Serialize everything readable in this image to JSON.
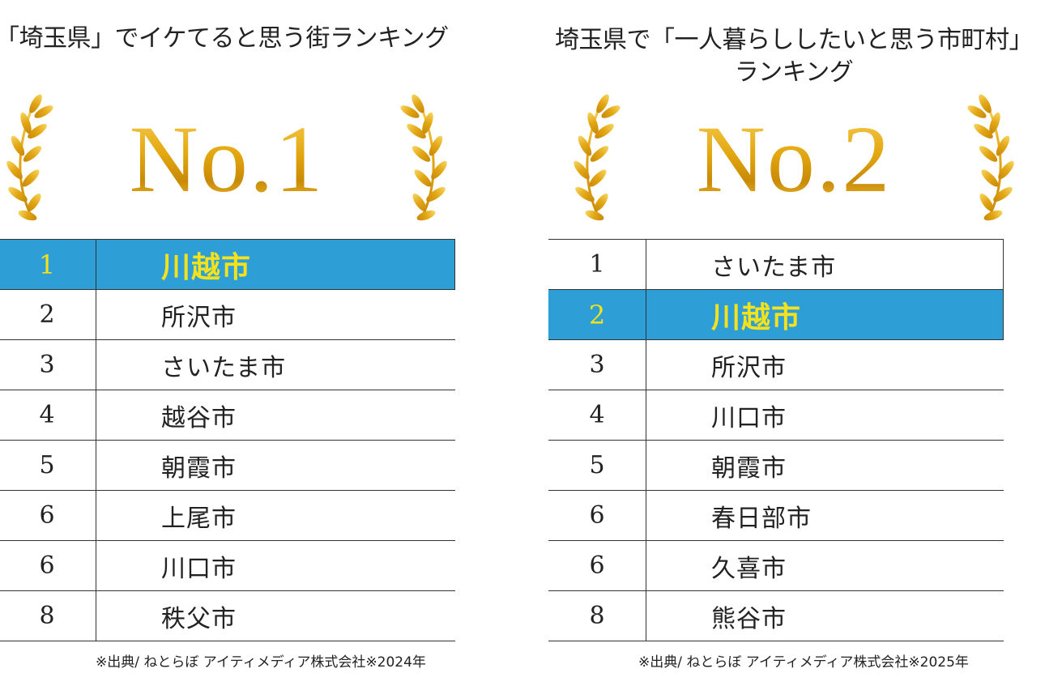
{
  "colors": {
    "highlight_bg": "#2e9fd6",
    "highlight_text": "#f5e21b",
    "gold": "#e3a70f"
  },
  "left": {
    "title": "「埼玉県」でイケてると思う街ランキング",
    "award_label": "No.1",
    "rows": [
      {
        "rank": "1",
        "city": "川越市",
        "highlight": true
      },
      {
        "rank": "2",
        "city": "所沢市"
      },
      {
        "rank": "3",
        "city": "さいたま市"
      },
      {
        "rank": "4",
        "city": "越谷市"
      },
      {
        "rank": "5",
        "city": "朝霞市"
      },
      {
        "rank": "6",
        "city": "上尾市"
      },
      {
        "rank": "6",
        "city": "川口市"
      },
      {
        "rank": "8",
        "city": "秩父市"
      }
    ],
    "source": "※出典/ ねとらぼ アイティメディア株式会社※2024年"
  },
  "right": {
    "title_line1": "埼玉県で「一人暮らししたいと思う市町村」",
    "title_line2": "ランキング",
    "award_label": "No.2",
    "rows": [
      {
        "rank": "1",
        "city": "さいたま市"
      },
      {
        "rank": "2",
        "city": "川越市",
        "highlight": true
      },
      {
        "rank": "3",
        "city": "所沢市"
      },
      {
        "rank": "4",
        "city": "川口市"
      },
      {
        "rank": "5",
        "city": "朝霞市"
      },
      {
        "rank": "6",
        "city": "春日部市"
      },
      {
        "rank": "6",
        "city": "久喜市"
      },
      {
        "rank": "8",
        "city": "熊谷市"
      }
    ],
    "source": "※出典/ ねとらぼ アイティメディア株式会社※2025年"
  }
}
